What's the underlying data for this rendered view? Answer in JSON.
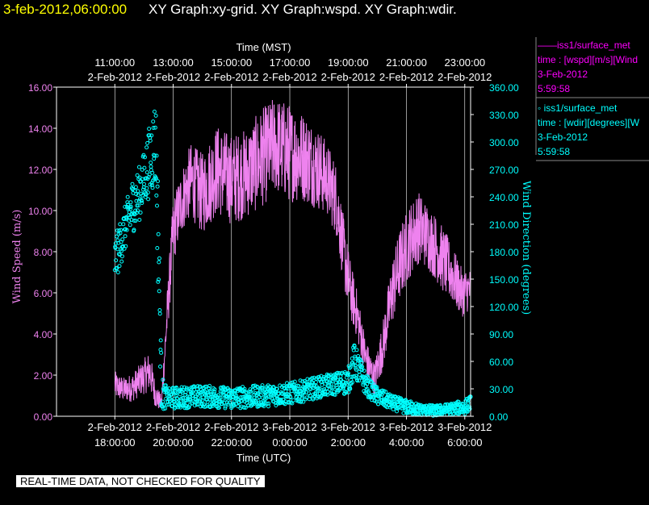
{
  "header": {
    "timestamp": "3-feb-2012,06:00:00",
    "title": "XY Graph:xy-grid.  XY Graph:wspd.  XY Graph:wdir."
  },
  "legend": [
    {
      "line1": "——iss1/surface_met",
      "line2": "time : [wspd][m/s][Wind",
      "date": "3-Feb-2012",
      "time": "5:59:58",
      "color": "#ff00ff"
    },
    {
      "line1": "◦  iss1/surface_met",
      "line2": "time : [wdir][degrees][W",
      "date": "3-Feb-2012",
      "time": "5:59:58",
      "color": "#00ffff"
    }
  ],
  "footer": "REAL-TIME DATA, NOT CHECKED FOR QUALITY",
  "colors": {
    "speed": "#ee82ee",
    "direction": "#00ffff",
    "grid": "#ffffff",
    "text": "#ffffff"
  },
  "chart_data": {
    "type": "line",
    "top_axis_label": "Time (MST)",
    "bottom_axis_label": "Time (UTC)",
    "y_left_label": "Wind Speed (m/s)",
    "y_right_label": "Wind Direction (degrees)",
    "y_left_range": [
      0,
      16
    ],
    "y_right_range": [
      0,
      360
    ],
    "x_range_hours": [
      16.0,
      30.2
    ],
    "grid": true,
    "bottom_ticks": [
      {
        "h": 18,
        "date": "2-Feb-2012",
        "time": "18:00:00"
      },
      {
        "h": 20,
        "date": "2-Feb-2012",
        "time": "20:00:00"
      },
      {
        "h": 22,
        "date": "2-Feb-2012",
        "time": "22:00:00"
      },
      {
        "h": 24,
        "date": "3-Feb-2012",
        "time": "0:00:00"
      },
      {
        "h": 26,
        "date": "3-Feb-2012",
        "time": "2:00:00"
      },
      {
        "h": 28,
        "date": "3-Feb-2012",
        "time": "4:00:00"
      },
      {
        "h": 30,
        "date": "3-Feb-2012",
        "time": "6:00:00"
      }
    ],
    "top_ticks": [
      {
        "h": 18,
        "time": "11:00:00",
        "date": "2-Feb-2012"
      },
      {
        "h": 20,
        "time": "13:00:00",
        "date": "2-Feb-2012"
      },
      {
        "h": 22,
        "time": "15:00:00",
        "date": "2-Feb-2012"
      },
      {
        "h": 24,
        "time": "17:00:00",
        "date": "2-Feb-2012"
      },
      {
        "h": 26,
        "time": "19:00:00",
        "date": "2-Feb-2012"
      },
      {
        "h": 28,
        "time": "21:00:00",
        "date": "2-Feb-2012"
      },
      {
        "h": 30,
        "time": "23:00:00",
        "date": "2-Feb-2012"
      }
    ],
    "left_ticks": [
      "0.00",
      "2.00",
      "4.00",
      "6.00",
      "8.00",
      "10.00",
      "12.00",
      "14.00",
      "16.00"
    ],
    "right_ticks": [
      "0.00",
      "30.00",
      "60.00",
      "90.00",
      "120.00",
      "150.00",
      "180.00",
      "210.00",
      "240.00",
      "270.00",
      "300.00",
      "330.00",
      "360.00"
    ],
    "series": [
      {
        "name": "iss1/surface_met time : [wspd][m/s]",
        "axis": "left",
        "style": "line",
        "x": [
          18.0,
          18.3,
          18.6,
          18.9,
          19.2,
          19.4,
          19.6,
          19.8,
          20.0,
          20.3,
          20.6,
          21.0,
          21.5,
          22.0,
          22.5,
          23.0,
          23.5,
          24.0,
          24.5,
          25.0,
          25.3,
          25.6,
          25.9,
          26.1,
          26.3,
          26.6,
          26.9,
          27.2,
          27.5,
          27.8,
          28.1,
          28.4,
          28.7,
          29.0,
          29.3,
          29.6,
          29.9,
          30.2
        ],
        "y": [
          1.5,
          1.3,
          1.4,
          1.8,
          2.2,
          1.0,
          0.6,
          5.0,
          9.0,
          10.5,
          11.5,
          10.8,
          12.0,
          11.5,
          11.8,
          12.5,
          13.2,
          12.8,
          12.6,
          12.0,
          11.5,
          10.5,
          7.5,
          6.0,
          5.0,
          2.8,
          1.8,
          3.5,
          6.0,
          7.5,
          8.5,
          9.2,
          8.8,
          8.2,
          7.5,
          6.8,
          6.0,
          6.2
        ],
        "amplitude": [
          0.7,
          0.6,
          0.7,
          0.8,
          1.0,
          0.6,
          0.4,
          1.2,
          1.6,
          1.6,
          1.8,
          2.0,
          2.2,
          2.2,
          2.2,
          2.4,
          2.4,
          2.4,
          2.2,
          2.0,
          1.8,
          1.8,
          1.6,
          1.4,
          1.2,
          1.0,
          0.8,
          1.2,
          1.6,
          1.8,
          1.8,
          1.8,
          1.6,
          1.6,
          1.6,
          1.4,
          1.2,
          1.0
        ]
      },
      {
        "name": "iss1/surface_met time : [wdir][degrees]",
        "axis": "right",
        "style": "scatter",
        "x": [
          18.0,
          18.2,
          18.4,
          18.6,
          18.8,
          19.0,
          19.2,
          19.4,
          19.5,
          19.6,
          19.8,
          20.0,
          21.0,
          22.0,
          23.0,
          24.0,
          24.5,
          25.0,
          25.5,
          26.0,
          26.2,
          26.4,
          26.6,
          26.8,
          27.0,
          27.5,
          28.0,
          28.5,
          29.0,
          29.5,
          30.0,
          30.2
        ],
        "y": [
          170,
          190,
          210,
          230,
          240,
          260,
          280,
          300,
          180,
          25,
          20,
          20,
          22,
          20,
          22,
          25,
          28,
          32,
          35,
          38,
          60,
          50,
          35,
          28,
          22,
          15,
          10,
          7,
          6,
          8,
          10,
          15
        ],
        "amplitude": [
          25,
          25,
          25,
          30,
          30,
          30,
          40,
          50,
          60,
          20,
          10,
          12,
          12,
          12,
          12,
          12,
          12,
          12,
          12,
          14,
          20,
          16,
          12,
          10,
          10,
          8,
          8,
          6,
          6,
          6,
          8,
          8
        ]
      }
    ]
  }
}
